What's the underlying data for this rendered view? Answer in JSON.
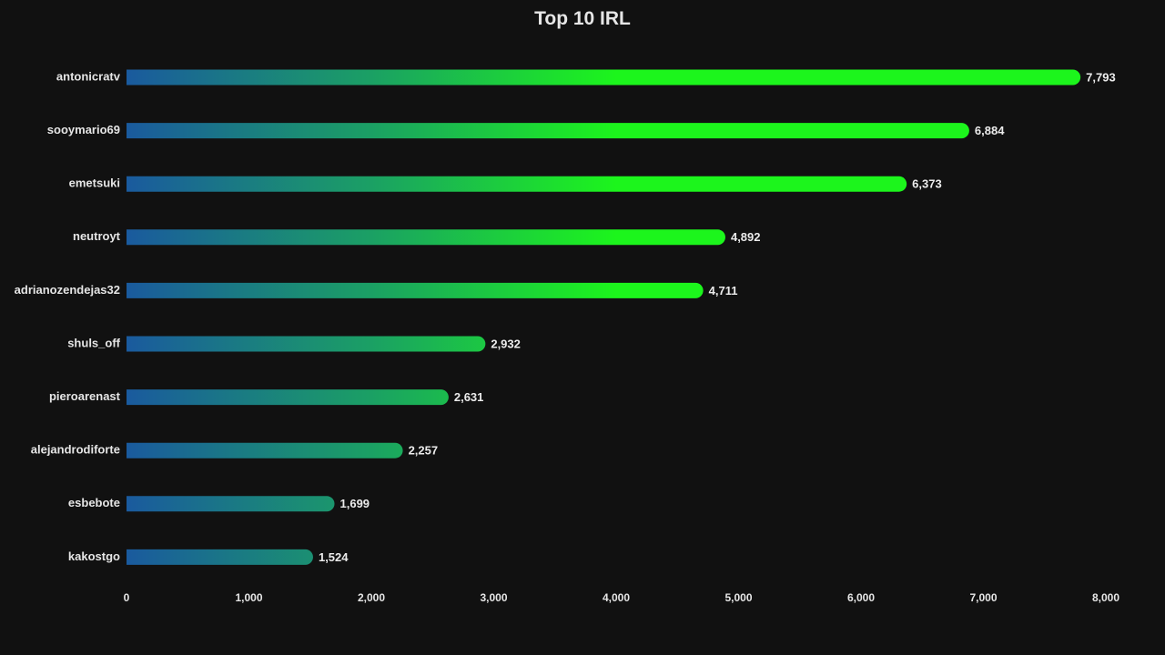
{
  "chart_data": {
    "type": "bar",
    "orientation": "horizontal",
    "title": "Top 10 IRL",
    "categories": [
      "antonicratv",
      "sooymario69",
      "emetsuki",
      "neutroyt",
      "adrianozendejas32",
      "shuls_off",
      "pieroarenast",
      "alejandrodiforte",
      "esbebote",
      "kakostgo"
    ],
    "values": [
      7793,
      6884,
      6373,
      4892,
      4711,
      2932,
      2631,
      2257,
      1699,
      1524
    ],
    "value_labels": [
      "7,793",
      "6,884",
      "6,373",
      "4,892",
      "4,711",
      "2,932",
      "2,631",
      "2,257",
      "1,699",
      "1,524"
    ],
    "xlim": [
      0,
      8000
    ],
    "x_ticks": [
      0,
      1000,
      2000,
      3000,
      4000,
      5000,
      6000,
      7000,
      8000
    ],
    "x_tick_labels": [
      "0",
      "1,000",
      "2,000",
      "3,000",
      "4,000",
      "5,000",
      "6,000",
      "7,000",
      "8,000"
    ],
    "grid": false,
    "legend": "none",
    "colors": {
      "background": "#111111",
      "bar_start": "#1a5a9e",
      "bar_end": "#1cf51c",
      "text": "#e6e6e6"
    }
  }
}
